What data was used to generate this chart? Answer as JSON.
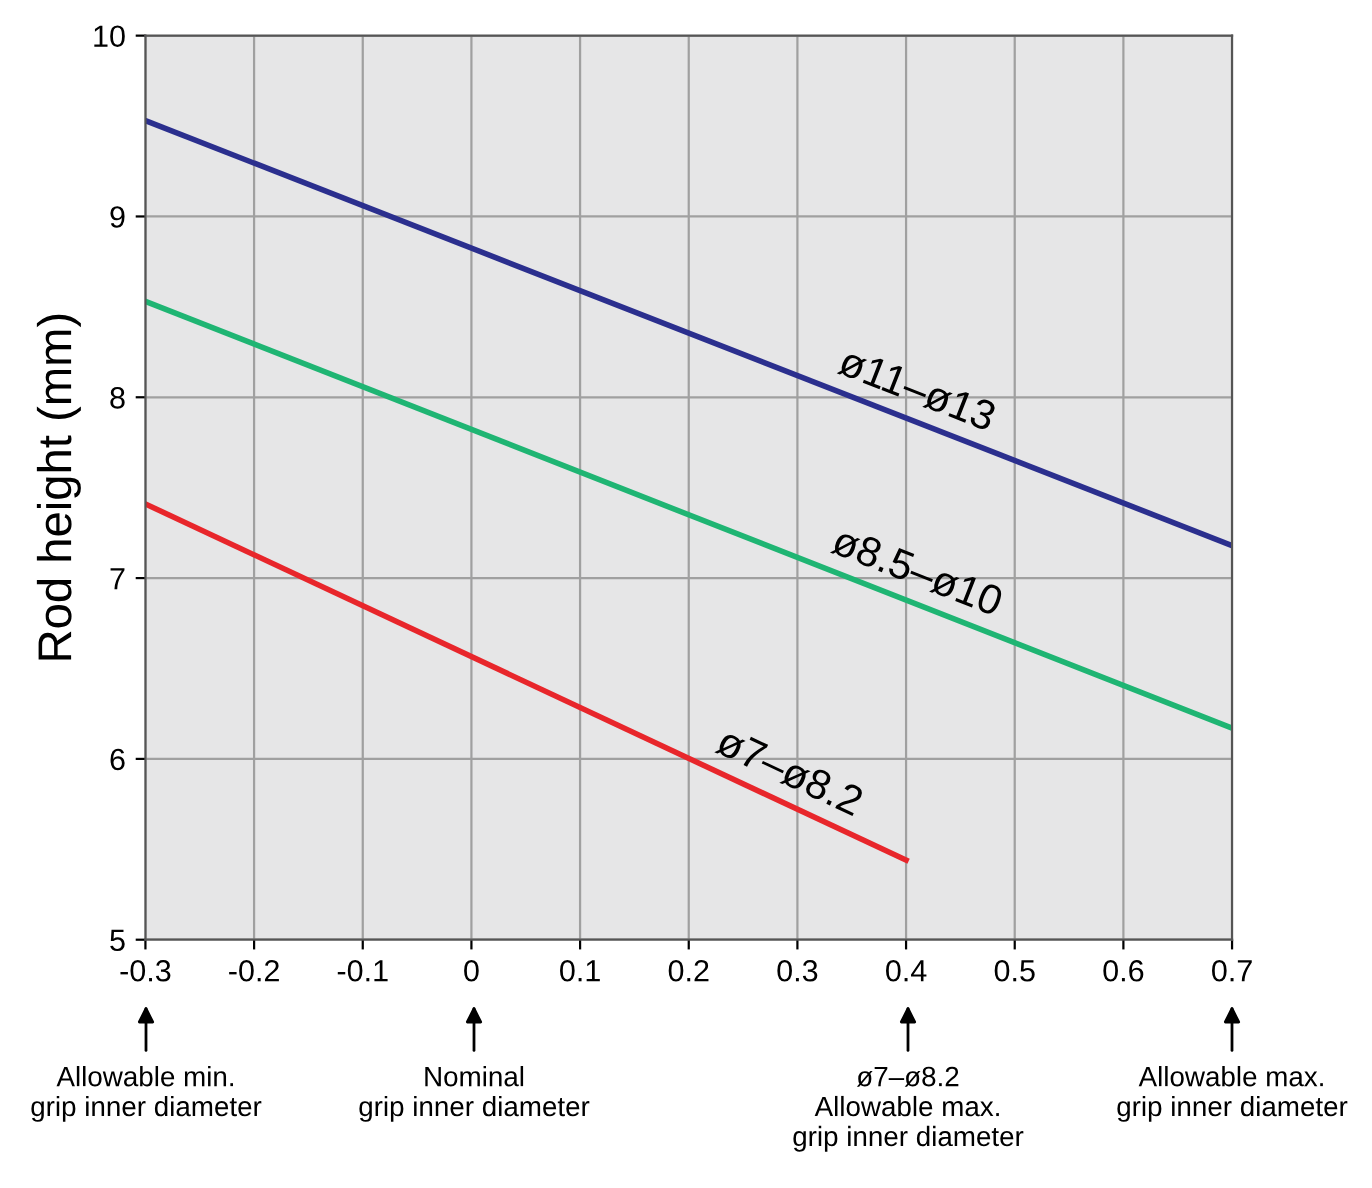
{
  "chart_data": {
    "type": "line",
    "ylabel": "Rod height (mm)",
    "x": [
      -0.3,
      0.7
    ],
    "series": [
      {
        "color": "#2b2f8e",
        "values": [
          9.53,
          7.18
        ]
      },
      {
        "color": "#1fb573",
        "values": [
          8.53,
          6.17
        ]
      },
      {
        "color": "#e8262b",
        "x": [
          -0.3,
          0.4
        ],
        "values": [
          7.41,
          5.44
        ]
      }
    ],
    "xlim": [
      -0.3,
      0.7
    ],
    "xticks": [
      -0.3,
      -0.2,
      -0.1,
      0,
      0.1,
      0.2,
      0.3,
      0.4,
      0.5,
      0.6,
      0.7
    ],
    "ylim": [
      5,
      10
    ],
    "yticks": [
      5,
      6,
      7,
      8,
      9,
      10
    ],
    "grid": true,
    "annotations": [
      "ø11–ø13",
      "ø8.5–ø10",
      "ø7–ø8.2",
      "Allowable min.\ngrip inner diameter",
      "Nominal\ngrip inner diameter",
      "ø7–ø8.2\nAllowable max.\ngrip inner diameter",
      "Allowable max.\ngrip inner diameter"
    ]
  }
}
